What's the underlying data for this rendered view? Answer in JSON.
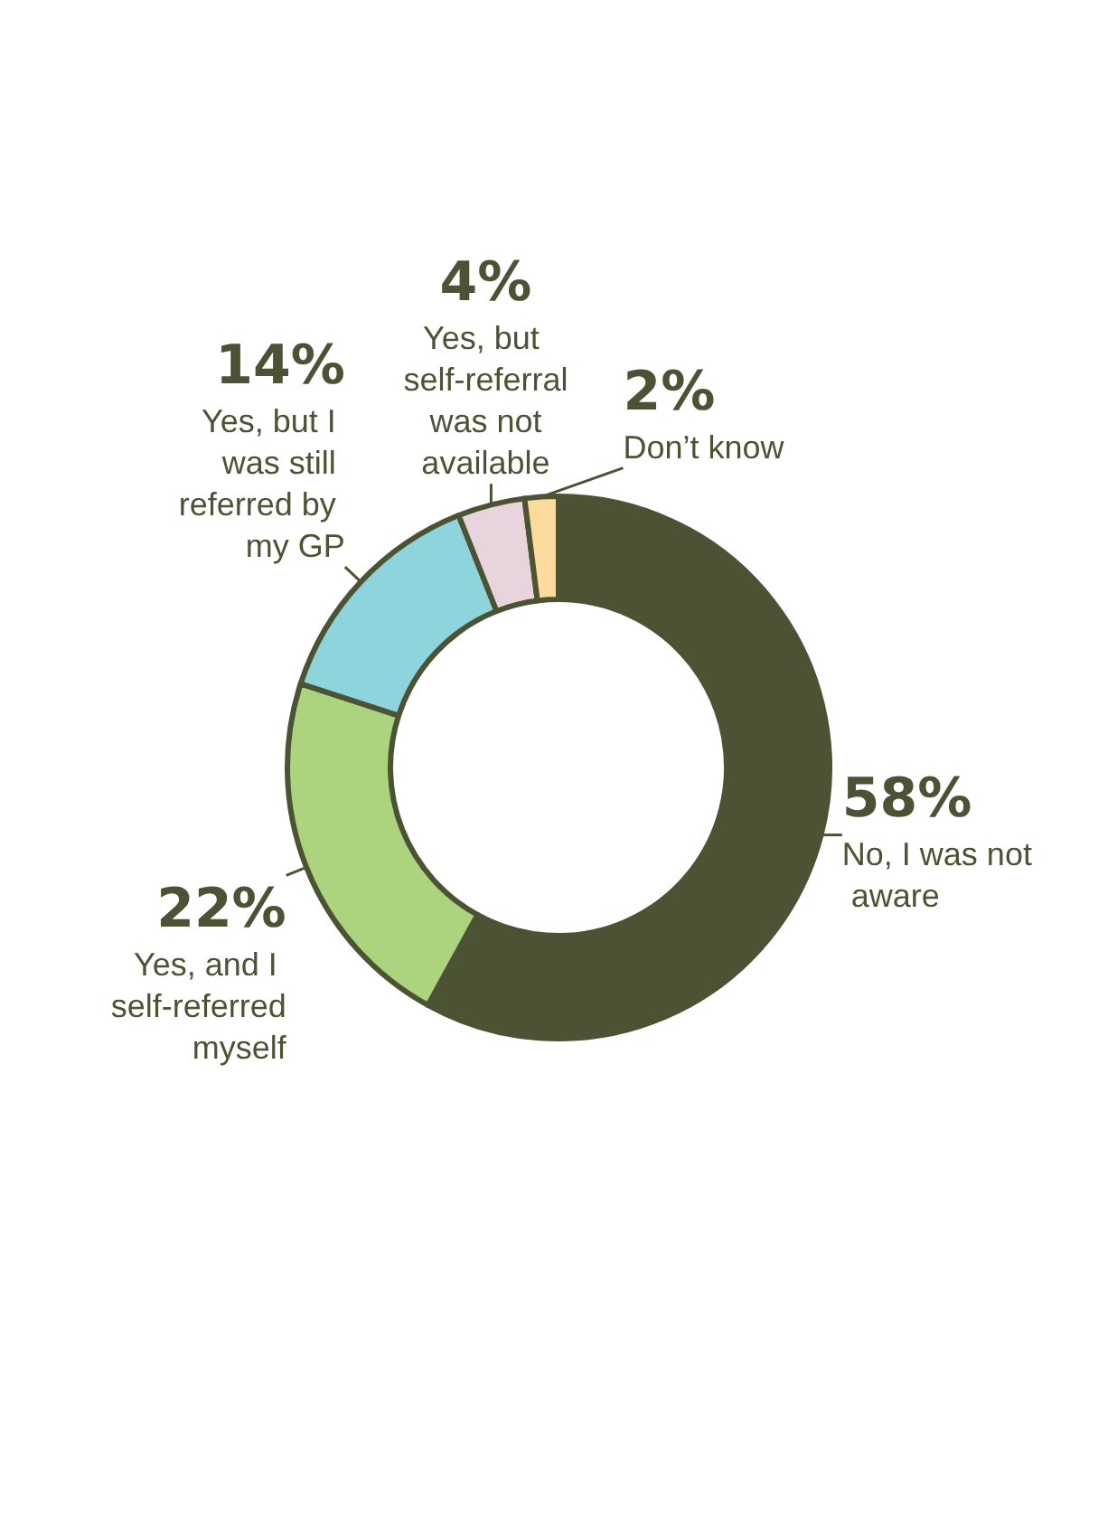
{
  "chart_data": {
    "type": "donut",
    "categories": [
      "No, I was not aware",
      "Yes, and I self-referred myself",
      "Yes, but I was still referred by my GP",
      "Yes, but self-referral was not available",
      "Don’t know"
    ],
    "values": [
      58,
      22,
      14,
      4,
      2
    ],
    "value_labels": [
      "58%",
      "22%",
      "14%",
      "4%",
      "2%"
    ],
    "colors": [
      "#4b5334",
      "#acd47f",
      "#8ed4dc",
      "#e8d4dc",
      "#fcdb9c"
    ],
    "legend": false
  }
}
